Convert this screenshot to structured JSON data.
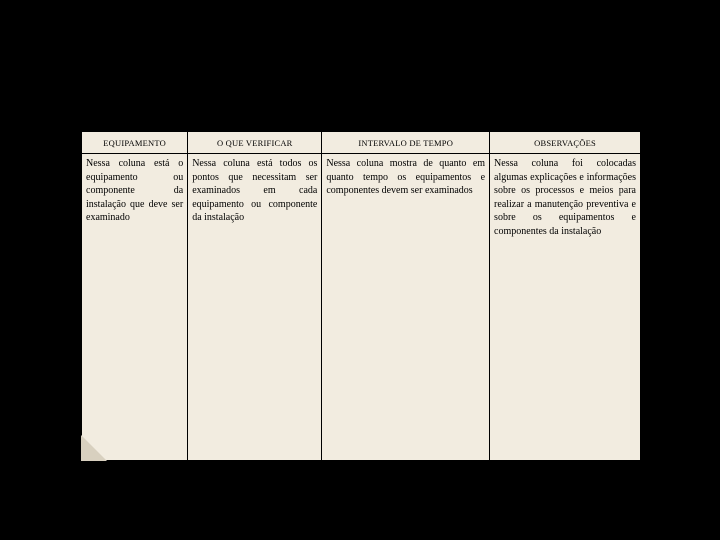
{
  "table": {
    "background_color": "#f2ece0",
    "border_color": "#000000",
    "header_fontsize": 8.5,
    "body_fontsize": 10,
    "columns": [
      {
        "label": "EQUIPAMENTO",
        "width_pct": 19
      },
      {
        "label": "O QUE VERIFICAR",
        "width_pct": 24
      },
      {
        "label": "INTERVALO DE TEMPO",
        "width_pct": 30
      },
      {
        "label": "OBSERVAÇÕES",
        "width_pct": 27
      }
    ],
    "rows": [
      {
        "equipamento": "Nessa coluna está o equipamento ou componente da instalação que deve ser examinado",
        "verificar": "Nessa coluna está todos os pontos que necessitam ser examinados em cada equipamento ou componente da instalação",
        "intervalo": "Nessa coluna mostra de quanto em quanto tempo os equipamentos e componentes devem ser examinados",
        "observacoes": "Nessa coluna foi colocadas algumas explicações e informações sobre os processos e meios para realizar a manutenção preventiva e sobre os equipamentos e componentes da instalação"
      }
    ]
  },
  "page": {
    "canvas_bg": "#000000",
    "paper_bg": "#f2ece0",
    "fold_color": "#d8d0bf"
  }
}
